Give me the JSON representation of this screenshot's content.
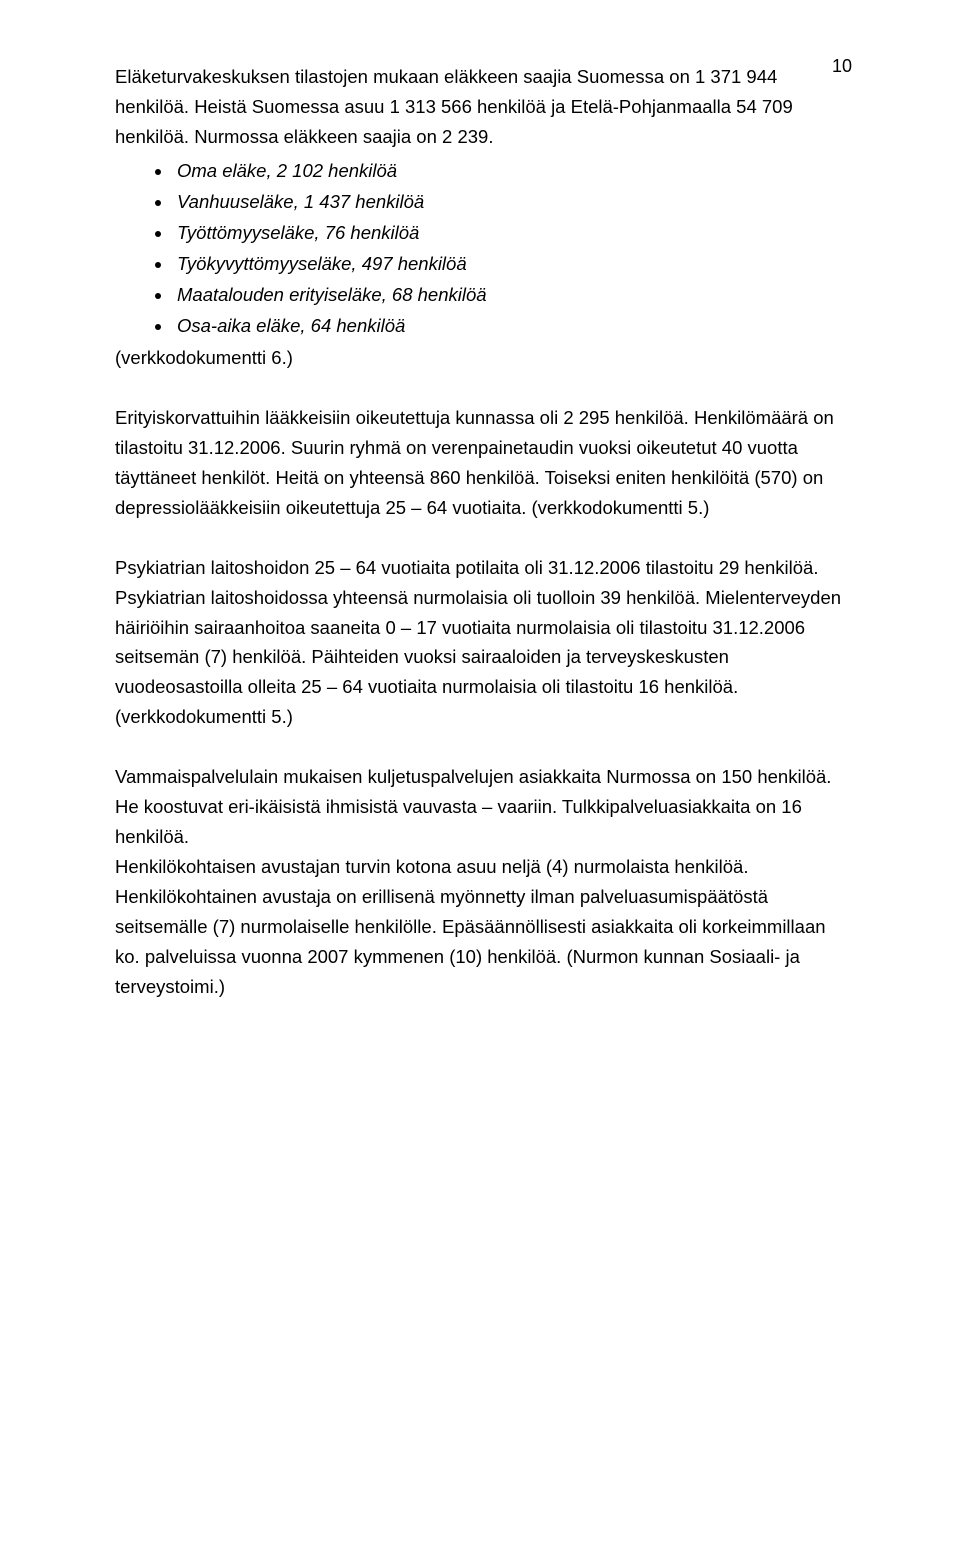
{
  "pageNumber": "10",
  "paragraph1": "Eläketurvakeskuksen tilastojen mukaan eläkkeen saajia Suomessa on 1 371 944 henkilöä. Heistä Suomessa asuu 1 313 566 henkilöä ja Etelä-Pohjanmaalla 54 709 henkilöä. Nurmossa eläkkeen saajia on 2 239.",
  "bullets": [
    "Oma eläke, 2 102 henkilöä",
    "Vanhuuseläke, 1 437 henkilöä",
    "Työttömyyseläke, 76 henkilöä",
    "Työkyvyttömyyseläke, 497 henkilöä",
    "Maatalouden erityiseläke, 68 henkilöä",
    "Osa-aika eläke, 64 henkilöä"
  ],
  "afterList": "(verkkodokumentti 6.)",
  "paragraph2": "Erityiskorvattuihin lääkkeisiin oikeutettuja kunnassa oli 2 295 henkilöä. Henkilömäärä on tilastoitu 31.12.2006. Suurin ryhmä on verenpainetaudin vuoksi oikeutetut 40 vuotta täyttäneet henkilöt. Heitä on yhteensä 860 henkilöä. Toiseksi eniten henkilöitä (570) on depressiolääkkeisiin oikeutettuja 25 – 64 vuotiaita. (verkkodokumentti 5.)",
  "paragraph3": "Psykiatrian laitoshoidon 25 – 64 vuotiaita potilaita oli 31.12.2006 tilastoitu 29 henkilöä. Psykiatrian laitoshoidossa yhteensä nurmolaisia oli tuolloin 39 henkilöä. Mielenterveyden häiriöihin sairaanhoitoa saaneita 0 – 17 vuotiaita nurmolaisia oli tilastoitu 31.12.2006 seitsemän (7) henkilöä. Päihteiden vuoksi sairaaloiden ja terveyskeskusten vuodeosastoilla olleita 25 – 64 vuotiaita nurmolaisia oli tilastoitu 16 henkilöä. (verkkodokumentti 5.)",
  "paragraph4": "Vammaispalvelulain mukaisen kuljetuspalvelujen asiakkaita Nurmossa on 150 henkilöä. He koostuvat eri-ikäisistä ihmisistä vauvasta – vaariin. Tulkkipalveluasiakkaita on 16 henkilöä.",
  "paragraph4b": "Henkilökohtaisen avustajan turvin kotona asuu neljä (4) nurmolaista henkilöä. Henkilökohtainen avustaja on erillisenä myönnetty ilman palveluasumispäätöstä seitsemälle (7) nurmolaiselle henkilölle. Epäsäännöllisesti asiakkaita oli korkeimmillaan ko. palveluissa vuonna 2007 kymmenen (10) henkilöä. (Nurmon kunnan Sosiaali- ja terveystoimi.)"
}
